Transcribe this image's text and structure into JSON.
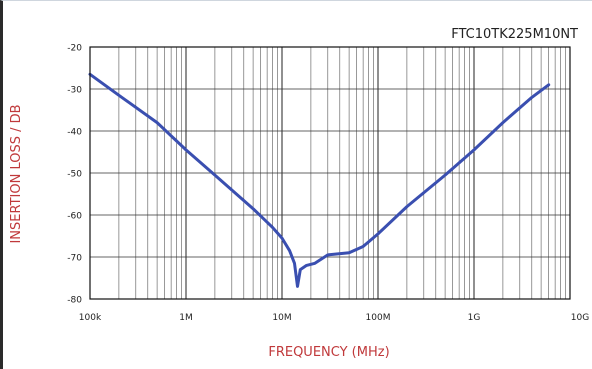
{
  "chart_data": {
    "type": "line",
    "title": "FTC10TK225M10NT",
    "xlabel": "FREQUENCY (MHz)",
    "ylabel": "INSERTION LOSS / DB",
    "x_scale": "log",
    "xlim": [
      "100k",
      "10G"
    ],
    "ylim": [
      -80,
      -20
    ],
    "grid": true,
    "x_ticks": [
      {
        "label": "100k",
        "decade": 0
      },
      {
        "label": "1M",
        "decade": 1
      },
      {
        "label": "10M",
        "decade": 2
      },
      {
        "label": "100M",
        "decade": 3
      },
      {
        "label": "1G",
        "decade": 4
      },
      {
        "label": "10G",
        "decade": 5
      }
    ],
    "y_ticks": [
      {
        "label": "-20",
        "value": -20
      },
      {
        "label": "-30",
        "value": -30
      },
      {
        "label": "-40",
        "value": -40
      },
      {
        "label": "-50",
        "value": -50
      },
      {
        "label": "-60",
        "value": -60
      },
      {
        "label": "-70",
        "value": -70
      },
      {
        "label": "-80",
        "value": -80
      }
    ],
    "series": [
      {
        "color": "#3a4fb0",
        "points": [
          {
            "f": "100k",
            "y": -26.5
          },
          {
            "f": "200k",
            "y": -31.5
          },
          {
            "f": "500k",
            "y": -38.0
          },
          {
            "f": "1M",
            "y": -44.5
          },
          {
            "f": "2M",
            "y": -50.5
          },
          {
            "f": "5M",
            "y": -58.5
          },
          {
            "f": "8M",
            "y": -63.0
          },
          {
            "f": "10M",
            "y": -65.5
          },
          {
            "f": "12M",
            "y": -68.5
          },
          {
            "f": "13.5M",
            "y": -71.5
          },
          {
            "f": "14.5M",
            "y": -77.0
          },
          {
            "f": "15.5M",
            "y": -73.0
          },
          {
            "f": "18M",
            "y": -72.0
          },
          {
            "f": "22M",
            "y": -71.5
          },
          {
            "f": "30M",
            "y": -69.5
          },
          {
            "f": "50M",
            "y": -69.0
          },
          {
            "f": "70M",
            "y": -67.5
          },
          {
            "f": "100M",
            "y": -64.5
          },
          {
            "f": "200M",
            "y": -58.0
          },
          {
            "f": "500M",
            "y": -50.5
          },
          {
            "f": "1G",
            "y": -44.5
          },
          {
            "f": "2G",
            "y": -38.0
          },
          {
            "f": "4G",
            "y": -32.0
          },
          {
            "f": "6G",
            "y": -29.0
          }
        ]
      }
    ]
  }
}
